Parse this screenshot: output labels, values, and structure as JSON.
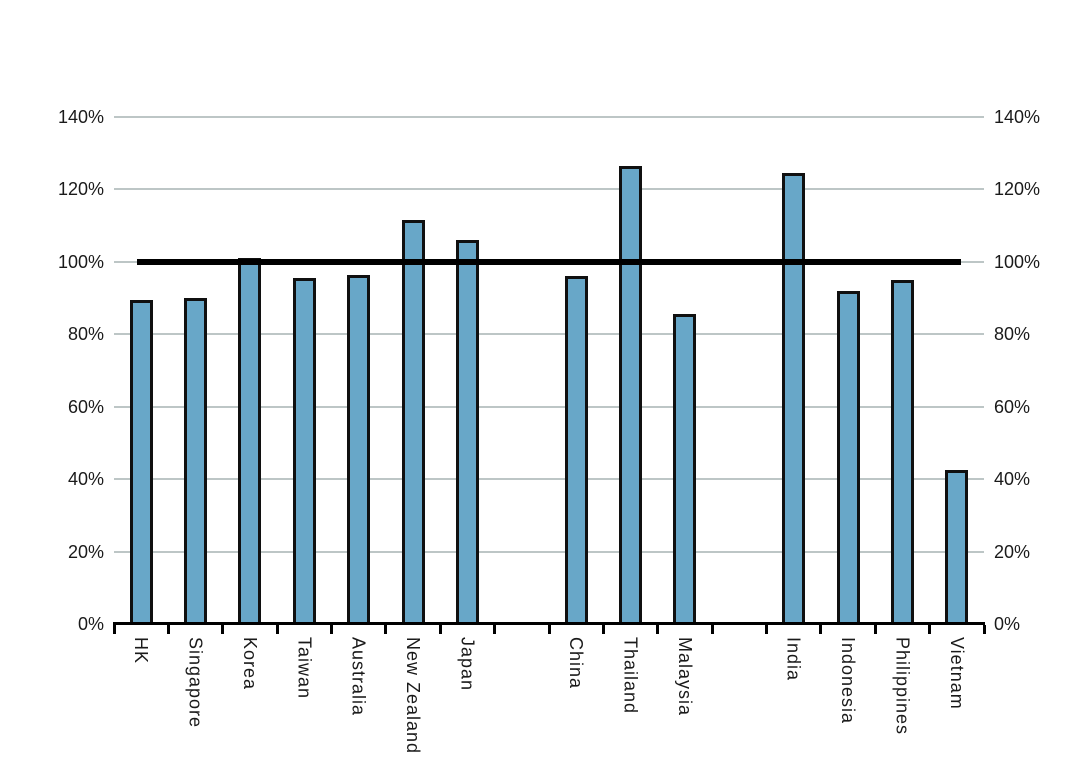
{
  "chart_data": {
    "type": "bar",
    "title": "",
    "xlabel": "",
    "ylabel": "",
    "categories": [
      "HK",
      "Singapore",
      "Korea",
      "Taiwan",
      "Australia",
      "New Zealand",
      "Japan",
      "",
      "China",
      "Thailand",
      "Malaysia",
      "",
      "India",
      "Indonesia",
      "Philippines",
      "Vietnam"
    ],
    "values": [
      89.5,
      90,
      101,
      95.5,
      96.5,
      111.5,
      106,
      null,
      96,
      126.5,
      85.5,
      null,
      124.5,
      92,
      95,
      42.5
    ],
    "ylim": [
      0,
      140
    ],
    "y_ticks": [
      0,
      20,
      40,
      60,
      80,
      100,
      120,
      140
    ],
    "y_tick_labels": [
      "0%",
      "20%",
      "40%",
      "60%",
      "80%",
      "100%",
      "120%",
      "140%"
    ],
    "axis_label_sides": [
      "left",
      "right"
    ],
    "grid": true,
    "legend": "none",
    "reference_line": {
      "value": 100,
      "color": "#000000",
      "span": "first-bar-to-last-bar"
    },
    "colors": {
      "bar_fill": "#68a7c8",
      "bar_border": "#101010",
      "gridline": "#bdc6c6",
      "axis": "#000000",
      "background": "#ffffff",
      "text": "#1a1a1a"
    }
  }
}
